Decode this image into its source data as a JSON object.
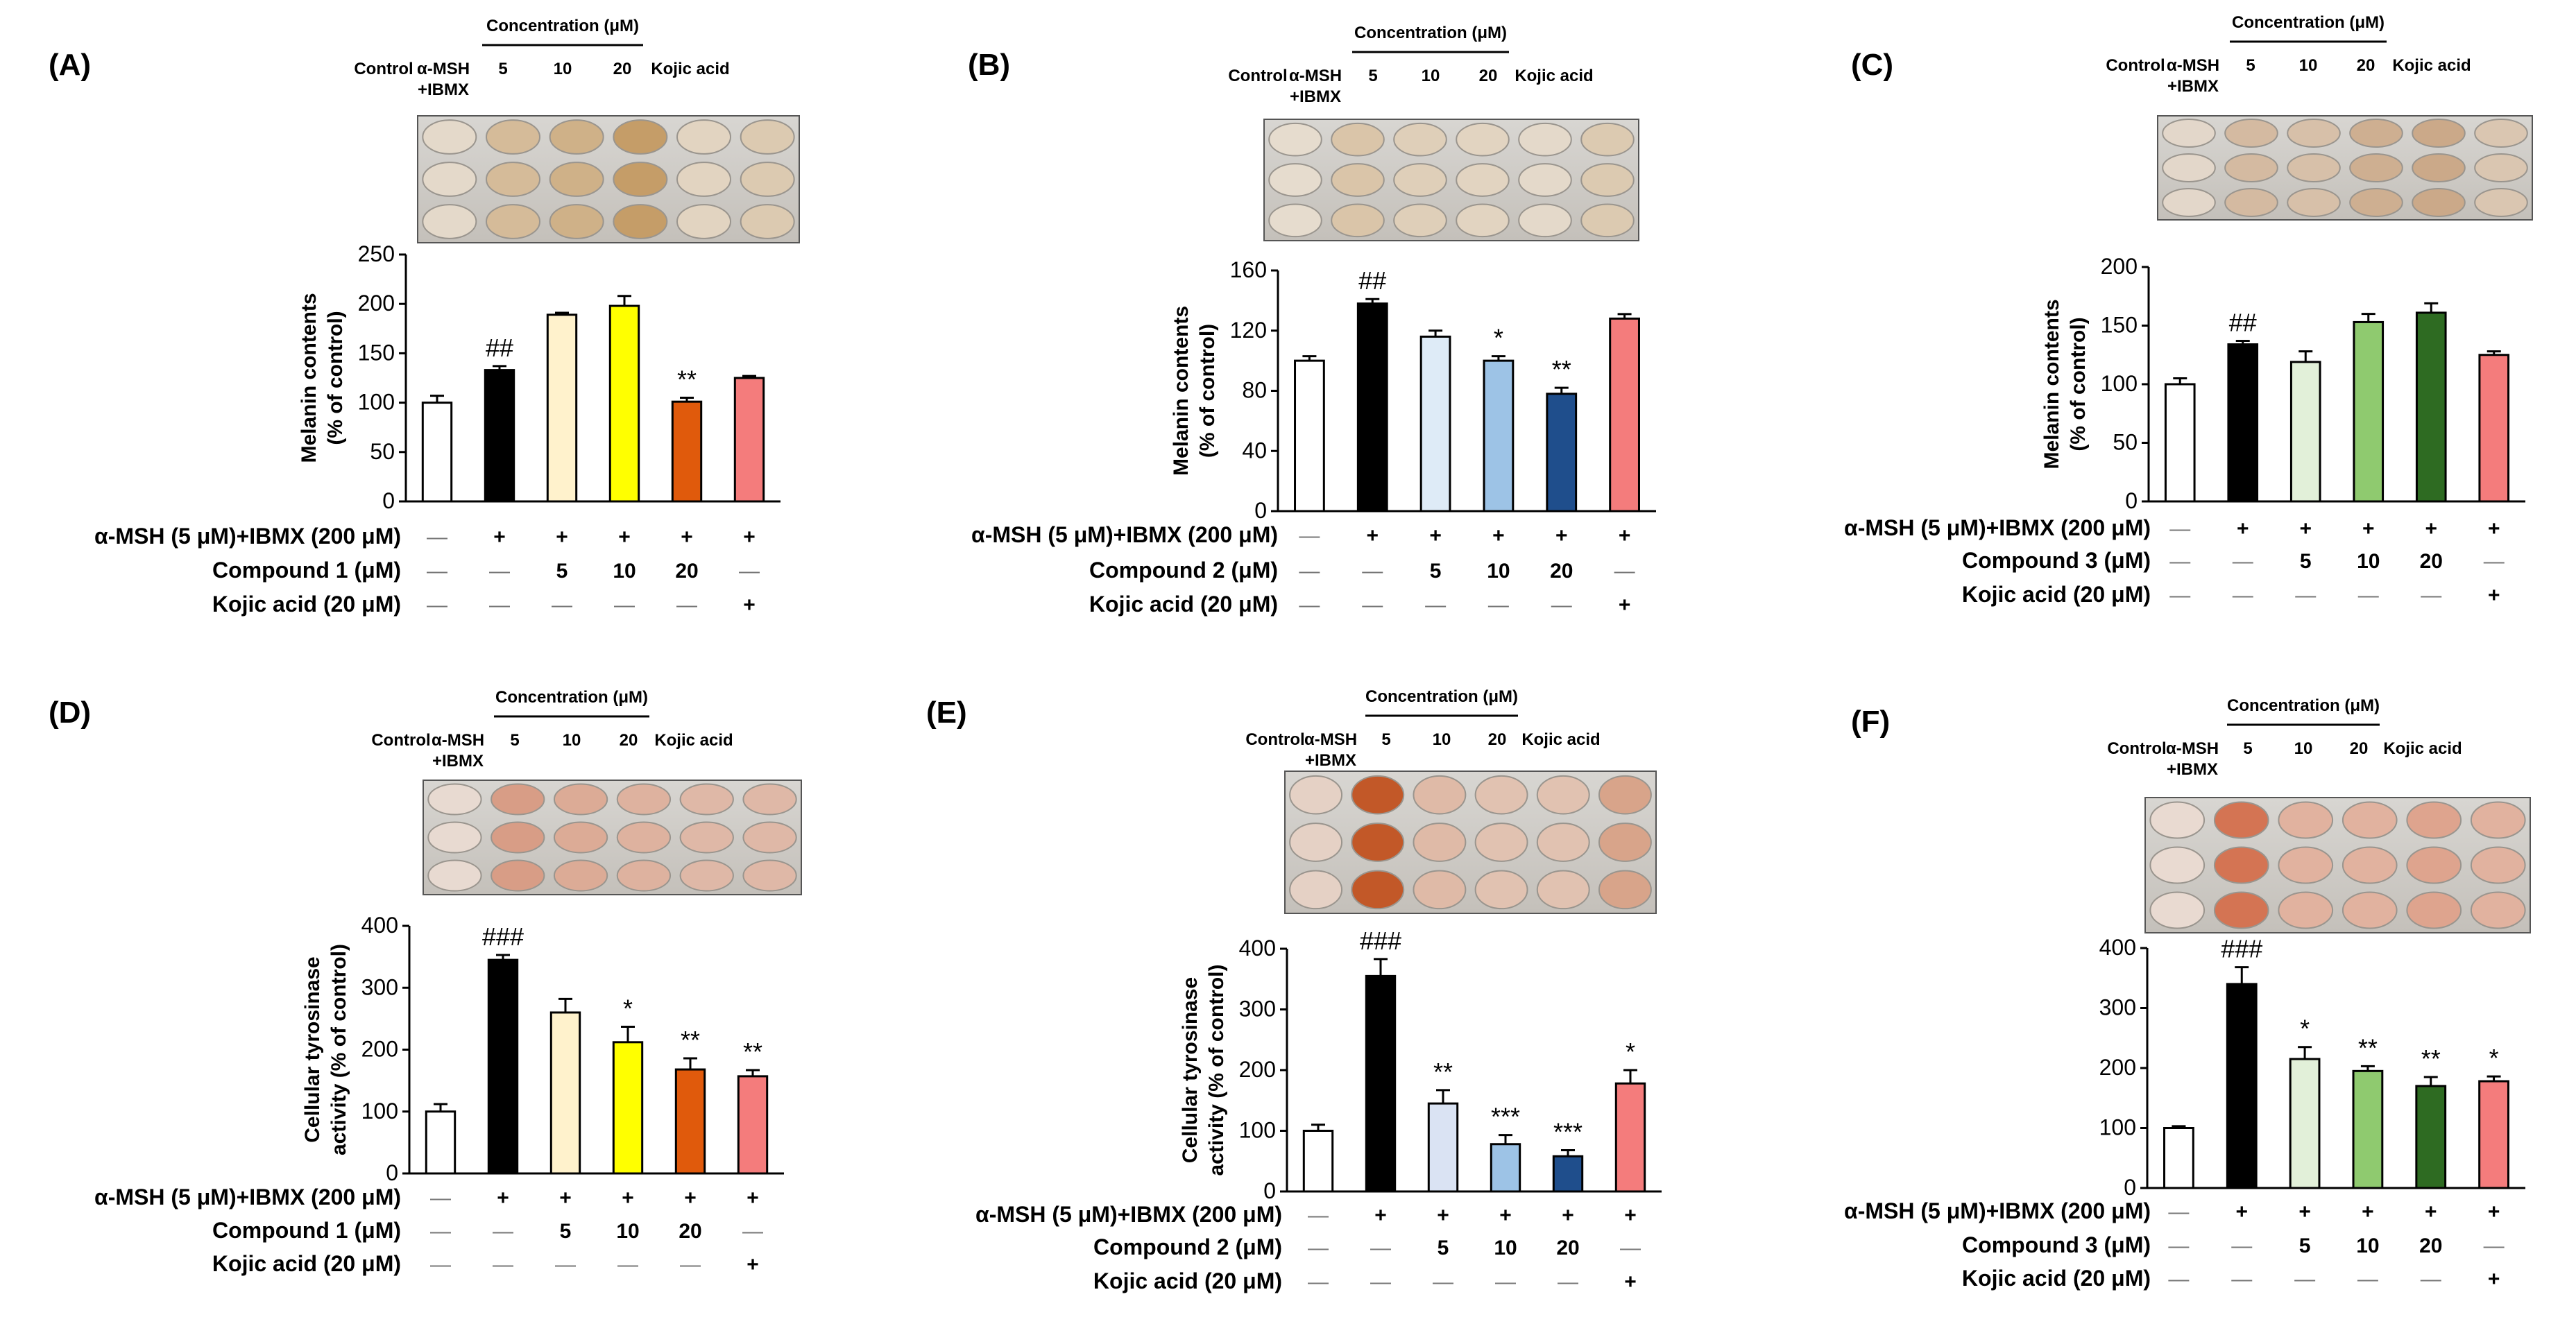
{
  "figure": {
    "conc_header": "Concentration (μM)",
    "col_labels": [
      "Control",
      "α-MSH",
      "+IBMX",
      "5",
      "10",
      "20",
      "Kojic acid"
    ],
    "row_labels": {
      "msh": "α-MSH (5 μM)+IBMX (200 μM)",
      "kojic": "Kojic acid (20 μM)"
    },
    "row_values": {
      "msh": [
        "—",
        "+",
        "+",
        "+",
        "+",
        "+"
      ],
      "kojic": [
        "—",
        "—",
        "—",
        "—",
        "—",
        "+"
      ]
    }
  },
  "panels": [
    {
      "label": "(A)",
      "compound_row": {
        "label": "Compound 1 (μM)",
        "values": [
          "—",
          "—",
          "5",
          "10",
          "20",
          "—"
        ]
      },
      "plate_tint": "#b8843f",
      "plate_intensity": [
        0.15,
        0.45,
        0.55,
        0.75,
        0.2,
        0.3
      ]
    },
    {
      "label": "(B)",
      "compound_row": {
        "label": "Compound 2 (μM)",
        "values": [
          "—",
          "—",
          "5",
          "10",
          "20",
          "—"
        ]
      },
      "plate_tint": "#b8843f",
      "plate_intensity": [
        0.12,
        0.35,
        0.25,
        0.2,
        0.15,
        0.3
      ]
    },
    {
      "label": "(C)",
      "compound_row": {
        "label": "Compound 3 (μM)",
        "values": [
          "—",
          "—",
          "5",
          "10",
          "20",
          "—"
        ]
      },
      "plate_tint": "#b07540",
      "plate_intensity": [
        0.15,
        0.4,
        0.35,
        0.5,
        0.55,
        0.3
      ]
    },
    {
      "label": "(D)",
      "compound_row": {
        "label": "Compound 1 (μM)",
        "values": [
          "—",
          "—",
          "5",
          "10",
          "20",
          "—"
        ]
      },
      "plate_tint": "#c8603a",
      "plate_intensity": [
        0.1,
        0.55,
        0.45,
        0.4,
        0.35,
        0.35
      ]
    },
    {
      "label": "(E)",
      "compound_row": {
        "label": "Compound 2 (μM)",
        "values": [
          "—",
          "—",
          "5",
          "10",
          "20",
          "—"
        ]
      },
      "plate_tint": "#c0501e",
      "plate_intensity": [
        0.15,
        0.95,
        0.3,
        0.25,
        0.25,
        0.45
      ]
    },
    {
      "label": "(F)",
      "compound_row": {
        "label": "Compound 3 (μM)",
        "values": [
          "—",
          "—",
          "5",
          "10",
          "20",
          "—"
        ]
      },
      "plate_tint": "#d0603a",
      "plate_intensity": [
        0.1,
        0.85,
        0.4,
        0.4,
        0.5,
        0.4
      ]
    }
  ],
  "chart_data": [
    {
      "panel": "(A)",
      "type": "bar",
      "categories": [
        "Control",
        "α-MSH+IBMX",
        "5",
        "10",
        "20",
        "Kojic acid"
      ],
      "values": [
        100,
        133,
        189,
        198,
        101,
        125
      ],
      "errors": [
        7,
        4,
        2,
        10,
        4,
        2
      ],
      "colors": [
        "#ffffff",
        "#000000",
        "#fff2cc",
        "#ffff00",
        "#e05a0c",
        "#f47c7c"
      ],
      "annotations": [
        "",
        "##",
        "",
        "",
        "**",
        ""
      ],
      "ylabel": [
        "Melanin contents",
        "(% of control)"
      ],
      "ylim": [
        0,
        250
      ],
      "yticks": [
        0,
        50,
        100,
        150,
        200,
        250
      ]
    },
    {
      "panel": "(B)",
      "type": "bar",
      "categories": [
        "Control",
        "α-MSH+IBMX",
        "5",
        "10",
        "20",
        "Kojic acid"
      ],
      "values": [
        100,
        138,
        116,
        100,
        78,
        128
      ],
      "errors": [
        3,
        3,
        4,
        3,
        4,
        3
      ],
      "colors": [
        "#ffffff",
        "#000000",
        "#deebf7",
        "#9dc3e6",
        "#1f4e8c",
        "#f47c7c"
      ],
      "annotations": [
        "",
        "##",
        "",
        "*",
        "**",
        ""
      ],
      "ylabel": [
        "Melanin contents",
        "(% of control)"
      ],
      "ylim": [
        0,
        160
      ],
      "yticks": [
        0,
        40,
        80,
        120,
        160
      ]
    },
    {
      "panel": "(C)",
      "type": "bar",
      "categories": [
        "Control",
        "α-MSH+IBMX",
        "5",
        "10",
        "20",
        "Kojic acid"
      ],
      "values": [
        100,
        134,
        119,
        153,
        161,
        125
      ],
      "errors": [
        5,
        3,
        9,
        7,
        8,
        3
      ],
      "colors": [
        "#ffffff",
        "#000000",
        "#e2f0d9",
        "#8fca6f",
        "#2e6b22",
        "#f47c7c"
      ],
      "annotations": [
        "",
        "##",
        "",
        "",
        "",
        ""
      ],
      "ylabel": [
        "Melanin contents",
        "(% of control)"
      ],
      "ylim": [
        0,
        200
      ],
      "yticks": [
        0,
        50,
        100,
        150,
        200
      ]
    },
    {
      "panel": "(D)",
      "type": "bar",
      "categories": [
        "Control",
        "α-MSH+IBMX",
        "5",
        "10",
        "20",
        "Kojic acid"
      ],
      "values": [
        100,
        345,
        260,
        212,
        168,
        157
      ],
      "errors": [
        12,
        8,
        22,
        25,
        18,
        10
      ],
      "colors": [
        "#ffffff",
        "#000000",
        "#fff2cc",
        "#ffff00",
        "#e05a0c",
        "#f47c7c"
      ],
      "annotations": [
        "",
        "###",
        "",
        "*",
        "**",
        "**"
      ],
      "ylabel": [
        "Cellular tyrosinase",
        "activity  (% of control)"
      ],
      "ylim": [
        0,
        400
      ],
      "yticks": [
        0,
        100,
        200,
        300,
        400
      ]
    },
    {
      "panel": "(E)",
      "type": "bar",
      "categories": [
        "Control",
        "α-MSH+IBMX",
        "5",
        "10",
        "20",
        "Kojic acid"
      ],
      "values": [
        100,
        355,
        145,
        78,
        58,
        178
      ],
      "errors": [
        10,
        28,
        22,
        15,
        10,
        22
      ],
      "colors": [
        "#ffffff",
        "#000000",
        "#dae3f3",
        "#9dc3e6",
        "#1f4e8c",
        "#f47c7c"
      ],
      "annotations": [
        "",
        "###",
        "**",
        "***",
        "***",
        "*"
      ],
      "ylabel": [
        "Cellular tyrosinase",
        "activity  (% of control)"
      ],
      "ylim": [
        0,
        400
      ],
      "yticks": [
        0,
        100,
        200,
        300,
        400
      ]
    },
    {
      "panel": "(F)",
      "type": "bar",
      "categories": [
        "Control",
        "α-MSH+IBMX",
        "5",
        "10",
        "20",
        "Kojic acid"
      ],
      "values": [
        100,
        340,
        215,
        195,
        170,
        178
      ],
      "errors": [
        3,
        28,
        20,
        8,
        15,
        8
      ],
      "colors": [
        "#ffffff",
        "#000000",
        "#e2f0d9",
        "#8fca6f",
        "#2e6b22",
        "#f47c7c"
      ],
      "annotations": [
        "",
        "###",
        "*",
        "**",
        "**",
        "*"
      ],
      "ylabel": [],
      "ylim": [
        0,
        400
      ],
      "yticks": [
        0,
        100,
        200,
        300,
        400
      ]
    }
  ]
}
